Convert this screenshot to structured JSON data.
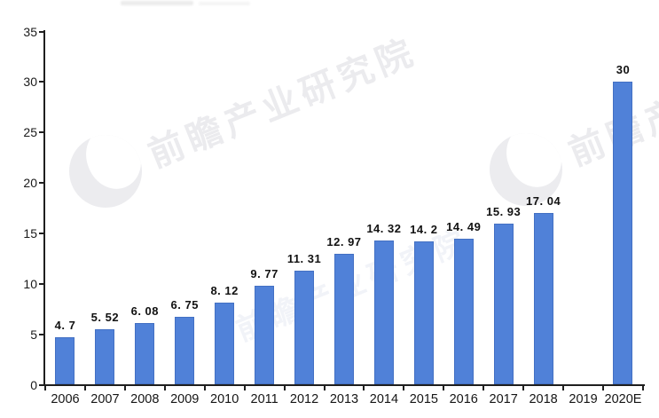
{
  "watermark": {
    "text": "前瞻产业研究院",
    "color": "#ebebee"
  },
  "chart_data": {
    "type": "bar",
    "title": "",
    "xlabel": "",
    "ylabel": "",
    "categories": [
      "2006",
      "2007",
      "2008",
      "2009",
      "2010",
      "2011",
      "2012",
      "2013",
      "2014",
      "2015",
      "2016",
      "2017",
      "2018",
      "2019",
      "2020E"
    ],
    "values": [
      4.7,
      5.52,
      6.08,
      6.75,
      8.12,
      9.77,
      11.31,
      12.97,
      14.32,
      14.2,
      14.49,
      15.93,
      17.04,
      null,
      30
    ],
    "bar_labels": [
      "4. 7",
      "5. 52",
      "6. 08",
      "6. 75",
      "8. 12",
      "9. 77",
      "11. 31",
      "12. 97",
      "14. 32",
      "14. 2",
      "14. 49",
      "15. 93",
      "17. 04",
      "",
      "30"
    ],
    "ylim": [
      0,
      35
    ],
    "yticks": [
      0,
      5,
      10,
      15,
      20,
      25,
      30,
      35
    ],
    "grid": false,
    "legend": null,
    "bar_color": "#5081d8",
    "axis_color": "#1f1f1f",
    "label_color": "#111111"
  }
}
